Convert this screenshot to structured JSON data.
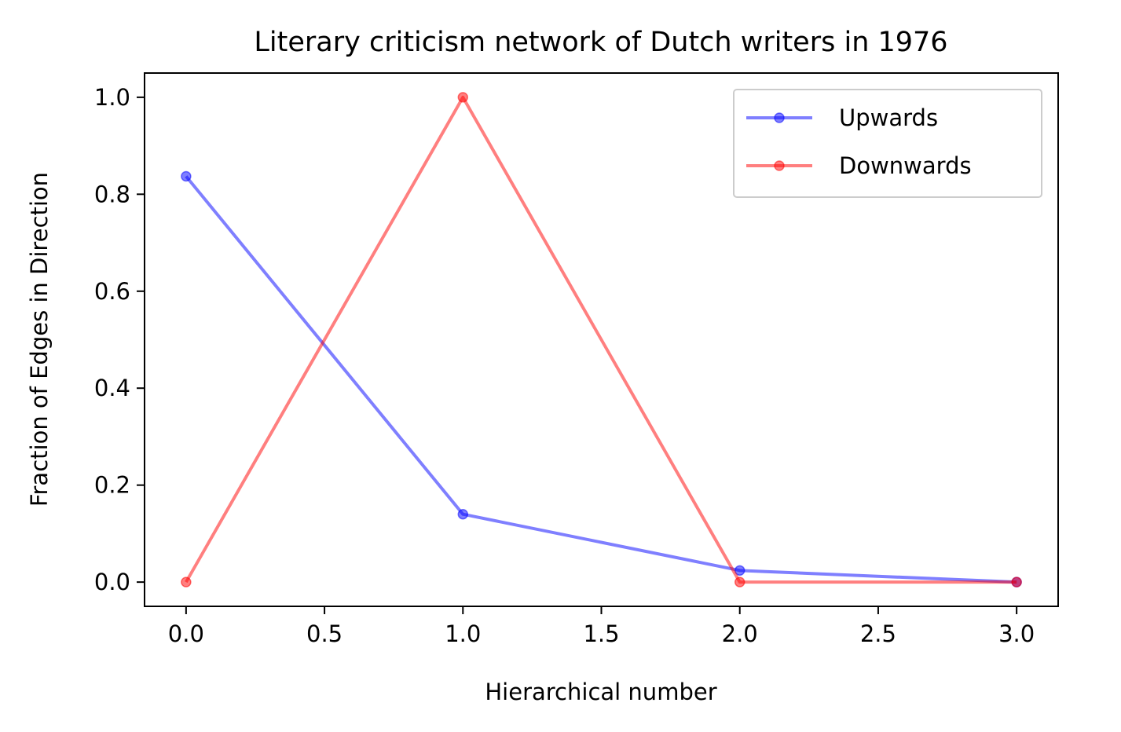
{
  "chart_data": {
    "type": "line",
    "title": "Literary criticism network of Dutch writers in 1976",
    "xlabel": "Hierarchical number",
    "ylabel": "Fraction of Edges in Direction",
    "xlim": [
      -0.15,
      3.15
    ],
    "ylim": [
      -0.05,
      1.05
    ],
    "xticks": [
      0.0,
      0.5,
      1.0,
      1.5,
      2.0,
      2.5,
      3.0
    ],
    "xtick_labels": [
      "0.0",
      "0.5",
      "1.0",
      "1.5",
      "2.0",
      "2.5",
      "3.0"
    ],
    "yticks": [
      0.0,
      0.2,
      0.4,
      0.6,
      0.8,
      1.0
    ],
    "ytick_labels": [
      "0.0",
      "0.2",
      "0.4",
      "0.6",
      "0.8",
      "1.0"
    ],
    "x": [
      0,
      1,
      2,
      3
    ],
    "series": [
      {
        "name": "Upwards",
        "values": [
          0.837,
          0.14,
          0.024,
          0.0
        ],
        "color": "#0000ff",
        "alpha": 0.5
      },
      {
        "name": "Downwards",
        "values": [
          0.0,
          1.0,
          0.0,
          0.0
        ],
        "color": "#ff0000",
        "alpha": 0.5
      }
    ],
    "legend_position": "upper right",
    "grid": false
  }
}
